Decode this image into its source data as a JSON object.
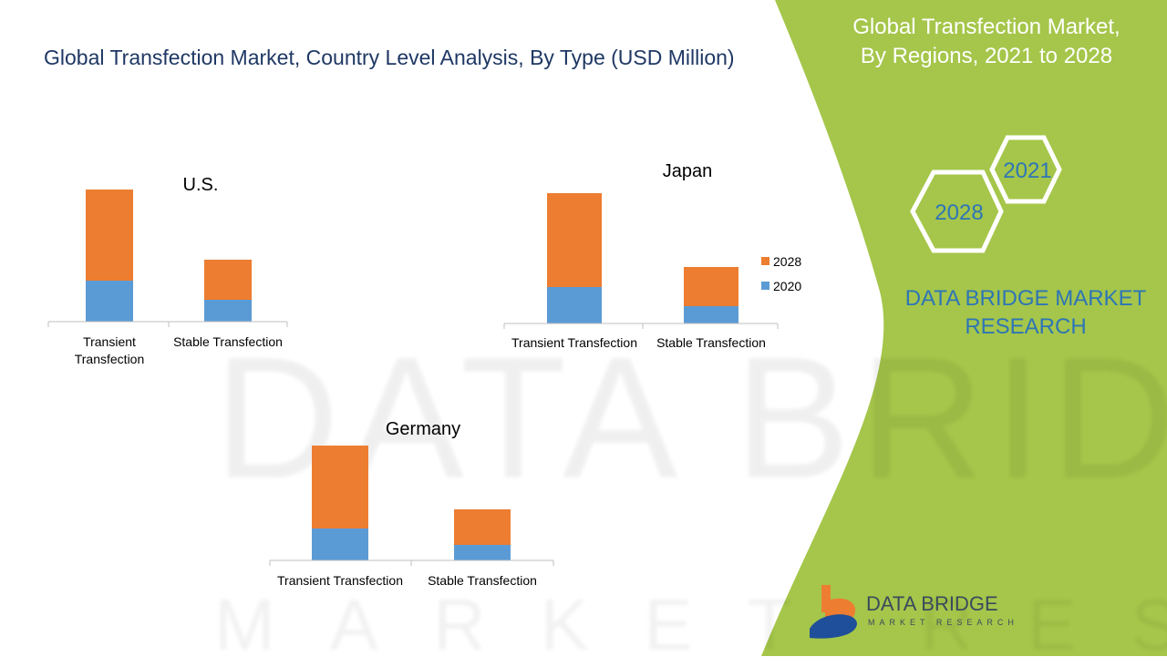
{
  "title": "Global Transfection Market, Country Level Analysis, By Type (USD Million)",
  "side_panel": {
    "title_line1": "Global Transfection Market,",
    "title_line2": "By Regions, 2021 to 2028",
    "hex_a": "2021",
    "hex_b": "2028",
    "brand_line1": "DATA BRIDGE MARKET",
    "brand_line2": "RESEARCH",
    "bg_color": "#a5c64a"
  },
  "logo": {
    "name": "DATA BRIDGE",
    "sub": "MARKET RESEARCH"
  },
  "watermark": {
    "line1": "DATA BRIDGE",
    "line2": "MARKET RESEARCH"
  },
  "chart_data": [
    {
      "type": "bar",
      "stacked": true,
      "title": "U.S.",
      "categories": [
        "Transient Transfection",
        "Stable Transfection"
      ],
      "series": [
        {
          "name": "2020",
          "color": "#5b9bd5",
          "values": [
            45,
            24
          ]
        },
        {
          "name": "2028",
          "color": "#ed7d31",
          "values": [
            100,
            44
          ]
        }
      ],
      "grid": false
    },
    {
      "type": "bar",
      "stacked": true,
      "title": "Japan",
      "categories": [
        "Transient Transfection",
        "Stable Transfection"
      ],
      "series": [
        {
          "name": "2020",
          "color": "#5b9bd5",
          "values": [
            40,
            19
          ]
        },
        {
          "name": "2028",
          "color": "#ed7d31",
          "values": [
            103,
            43
          ]
        }
      ],
      "legend": [
        "2028",
        "2020"
      ],
      "legend_position": "right",
      "grid": false
    },
    {
      "type": "bar",
      "stacked": true,
      "title": "Germany",
      "categories": [
        "Transient Transfection",
        "Stable Transfection"
      ],
      "series": [
        {
          "name": "2020",
          "color": "#5b9bd5",
          "values": [
            35,
            17
          ]
        },
        {
          "name": "2028",
          "color": "#ed7d31",
          "values": [
            91,
            39
          ]
        }
      ],
      "grid": false
    }
  ]
}
